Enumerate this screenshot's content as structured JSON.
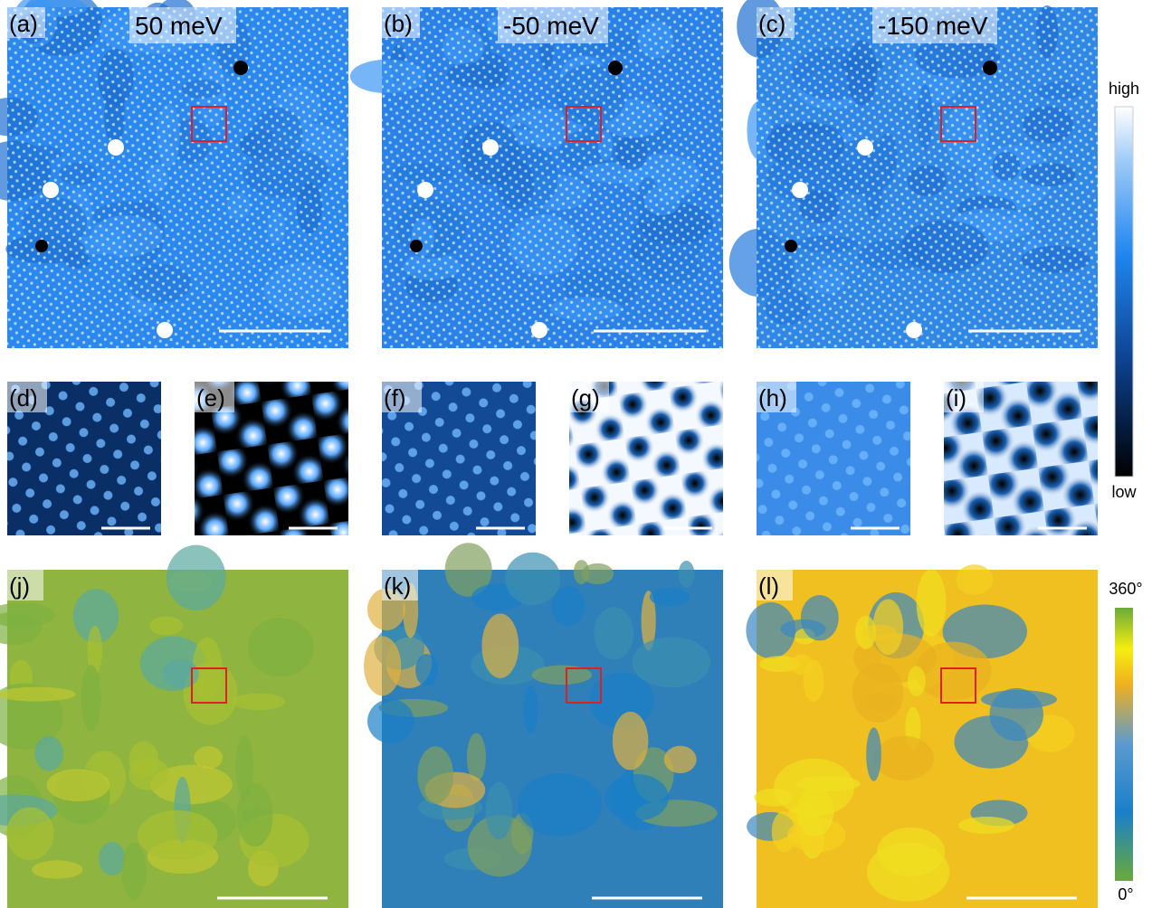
{
  "large_panels": [
    {
      "label": "(a)",
      "energy": "50 meV"
    },
    {
      "label": "(b)",
      "energy": "-50 meV"
    },
    {
      "label": "(c)",
      "energy": "-150 meV"
    }
  ],
  "small_panels": [
    {
      "label": "(d)"
    },
    {
      "label": "(e)"
    },
    {
      "label": "(f)"
    },
    {
      "label": "(g)"
    },
    {
      "label": "(h)"
    },
    {
      "label": "(i)"
    }
  ],
  "phase_panels": [
    {
      "label": "(j)"
    },
    {
      "label": "(k)"
    },
    {
      "label": "(l)"
    }
  ],
  "colorbar_topography": {
    "top": "high",
    "bottom": "low"
  },
  "colorbar_phase": {
    "top": "360°",
    "bottom": "0°"
  }
}
